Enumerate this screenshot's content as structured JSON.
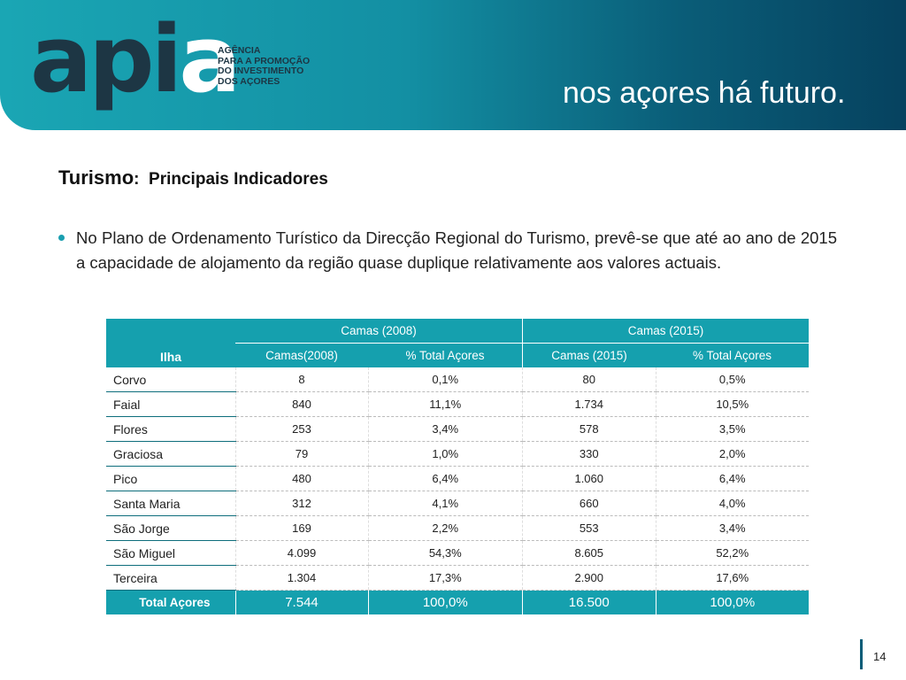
{
  "header": {
    "logo": [
      "api",
      "a"
    ],
    "agency": [
      "AGÊNCIA",
      "PARA A PROMOÇÃO",
      "DO INVESTIMENTO",
      "DOS AÇORES"
    ],
    "tagline": "nos açores há futuro."
  },
  "title": {
    "main": "Turismo",
    "rest": ":  Principais Indicadores"
  },
  "bullet": "No Plano de Ordenamento Turístico da Direcção Regional do Turismo, prevê-se que até ao ano de 2015 a capacidade de alojamento da região quase duplique relativamente aos valores actuais.",
  "table": {
    "corner": "Ilha",
    "groups": [
      "Camas (2008)",
      "Camas (2015)"
    ],
    "columns": [
      "Camas(2008)",
      "% Total Açores",
      "Camas (2015)",
      "% Total Açores"
    ],
    "rows": [
      [
        "Corvo",
        "8",
        "0,1%",
        "80",
        "0,5%"
      ],
      [
        "Faial",
        "840",
        "11,1%",
        "1.734",
        "10,5%"
      ],
      [
        "Flores",
        "253",
        "3,4%",
        "578",
        "3,5%"
      ],
      [
        "Graciosa",
        "79",
        "1,0%",
        "330",
        "2,0%"
      ],
      [
        "Pico",
        "480",
        "6,4%",
        "1.060",
        "6,4%"
      ],
      [
        "Santa Maria",
        "312",
        "4,1%",
        "660",
        "4,0%"
      ],
      [
        "São Jorge",
        "169",
        "2,2%",
        "553",
        "3,4%"
      ],
      [
        "São Miguel",
        "4.099",
        "54,3%",
        "8.605",
        "52,2%"
      ],
      [
        "Terceira",
        "1.304",
        "17,3%",
        "2.900",
        "17,6%"
      ]
    ],
    "total": [
      "Total Açores",
      "7.544",
      "100,0%",
      "16.500",
      "100,0%"
    ]
  },
  "page_number": "14"
}
